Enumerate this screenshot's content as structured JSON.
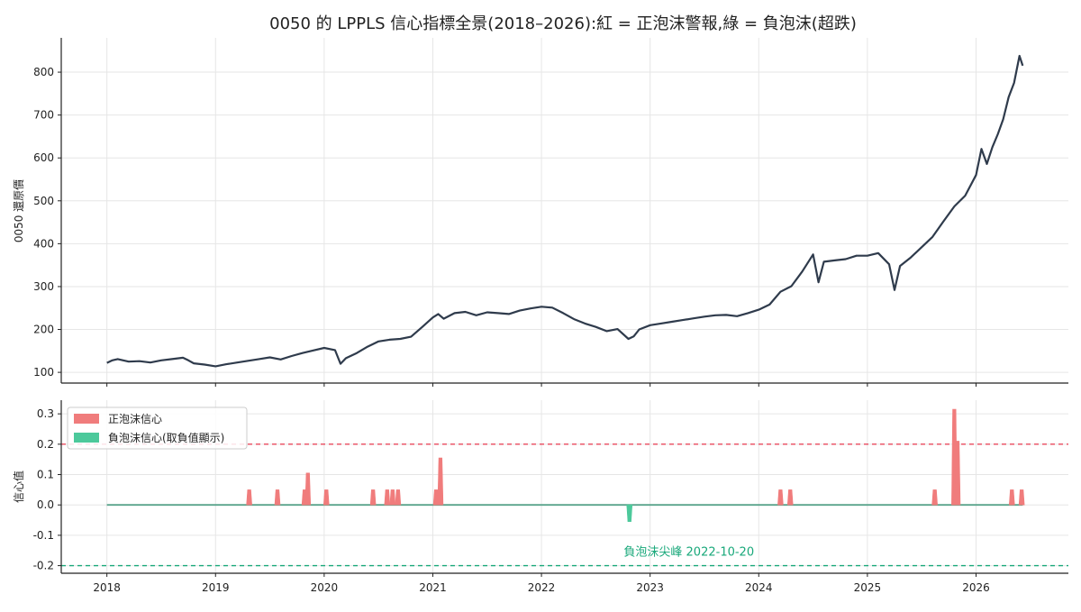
{
  "chart_data": [
    {
      "type": "line",
      "title": "0050 的 LPPLS 信心指標全景(2018–2026):紅 = 正泡沫警報,綠 = 負泡沫(超跌)",
      "ylabel": "0050 還原價",
      "xlabel": "",
      "ylim": [
        75,
        880
      ],
      "yticks": [
        "100",
        "200",
        "300",
        "400",
        "500",
        "600",
        "700",
        "800"
      ],
      "ytick_values": [
        100,
        200,
        300,
        400,
        500,
        600,
        700,
        800
      ],
      "grid": true,
      "line_color": "#2f3b4c",
      "series": [
        {
          "x": [
            2018.0,
            2018.05,
            2018.1,
            2018.2,
            2018.3,
            2018.4,
            2018.5,
            2018.6,
            2018.7,
            2018.75,
            2018.8,
            2018.9,
            2019.0,
            2019.1,
            2019.2,
            2019.3,
            2019.4,
            2019.5,
            2019.6,
            2019.7,
            2019.8,
            2019.9,
            2020.0,
            2020.1,
            2020.15,
            2020.2,
            2020.3,
            2020.4,
            2020.5,
            2020.6,
            2020.7,
            2020.8,
            2020.9,
            2021.0,
            2021.05,
            2021.1,
            2021.2,
            2021.3,
            2021.4,
            2021.5,
            2021.6,
            2021.7,
            2021.8,
            2021.9,
            2022.0,
            2022.1,
            2022.2,
            2022.3,
            2022.4,
            2022.5,
            2022.6,
            2022.7,
            2022.8,
            2022.85,
            2022.9,
            2023.0,
            2023.1,
            2023.2,
            2023.3,
            2023.4,
            2023.5,
            2023.6,
            2023.7,
            2023.8,
            2023.9,
            2024.0,
            2024.1,
            2024.2,
            2024.3,
            2024.4,
            2024.5,
            2024.55,
            2024.6,
            2024.7,
            2024.8,
            2024.9,
            2025.0,
            2025.1,
            2025.2,
            2025.25,
            2025.3,
            2025.4,
            2025.5,
            2025.6,
            2025.7,
            2025.8,
            2025.9,
            2026.0,
            2026.05,
            2026.1,
            2026.15,
            2026.2,
            2026.25,
            2026.3,
            2026.35,
            2026.4,
            2026.43
          ],
          "values": [
            122,
            128,
            131,
            125,
            126,
            123,
            128,
            131,
            134,
            128,
            121,
            118,
            114,
            119,
            123,
            127,
            131,
            135,
            130,
            138,
            145,
            151,
            157,
            152,
            120,
            133,
            145,
            160,
            172,
            176,
            178,
            183,
            205,
            228,
            236,
            225,
            238,
            241,
            233,
            240,
            238,
            236,
            244,
            249,
            253,
            251,
            238,
            224,
            214,
            206,
            196,
            201,
            178,
            184,
            200,
            210,
            214,
            218,
            222,
            226,
            230,
            233,
            234,
            231,
            238,
            246,
            258,
            288,
            301,
            335,
            375,
            310,
            358,
            361,
            364,
            372,
            372,
            378,
            352,
            292,
            348,
            368,
            392,
            416,
            452,
            487,
            512,
            560,
            621,
            586,
            625,
            655,
            690,
            742,
            775,
            838,
            815
          ]
        }
      ]
    },
    {
      "type": "area",
      "ylabel": "信心值",
      "xlabel": "",
      "ylim": [
        -0.225,
        0.345
      ],
      "yticks": [
        "0.3",
        "0.2",
        "0.1",
        "0.0",
        "-0.1",
        "-0.2"
      ],
      "ytick_values": [
        0.3,
        0.2,
        0.1,
        0.0,
        -0.1,
        -0.2
      ],
      "xlim": [
        2017.58,
        2026.85
      ],
      "xticks": [
        "2018",
        "2019",
        "2020",
        "2021",
        "2022",
        "2023",
        "2024",
        "2025",
        "2026"
      ],
      "xtick_values": [
        2018,
        2019,
        2020,
        2021,
        2022,
        2023,
        2024,
        2025,
        2026
      ],
      "grid": true,
      "thresholds": [
        {
          "value": 0.2,
          "color": "#e8485d"
        },
        {
          "value": -0.2,
          "color": "#18a87a"
        }
      ],
      "baseline_color": "#5aa48c",
      "series": [
        {
          "name": "正泡沫信心",
          "color": "#f07c7c",
          "spikes": [
            {
              "x": 2019.31,
              "value": 0.05
            },
            {
              "x": 2019.57,
              "value": 0.05
            },
            {
              "x": 2019.82,
              "value": 0.05
            },
            {
              "x": 2019.85,
              "value": 0.105
            },
            {
              "x": 2020.02,
              "value": 0.05
            },
            {
              "x": 2020.45,
              "value": 0.05
            },
            {
              "x": 2020.58,
              "value": 0.05
            },
            {
              "x": 2020.63,
              "value": 0.05
            },
            {
              "x": 2020.68,
              "value": 0.05
            },
            {
              "x": 2021.03,
              "value": 0.05
            },
            {
              "x": 2021.07,
              "value": 0.155
            },
            {
              "x": 2024.2,
              "value": 0.05
            },
            {
              "x": 2024.29,
              "value": 0.05
            },
            {
              "x": 2025.62,
              "value": 0.05
            },
            {
              "x": 2025.8,
              "value": 0.315
            },
            {
              "x": 2025.83,
              "value": 0.21
            },
            {
              "x": 2026.33,
              "value": 0.05
            },
            {
              "x": 2026.42,
              "value": 0.05
            }
          ]
        },
        {
          "name": "負泡沫信心(取負值顯示)",
          "color": "#4cc99b",
          "spikes": [
            {
              "x": 2022.81,
              "value": -0.055
            }
          ]
        }
      ],
      "annotations": [
        {
          "text": "負泡沫尖峰 2022-10-20",
          "x": 2022.81,
          "y": -0.155,
          "color": "#18a87a"
        }
      ],
      "legend_position": "upper-left"
    }
  ]
}
